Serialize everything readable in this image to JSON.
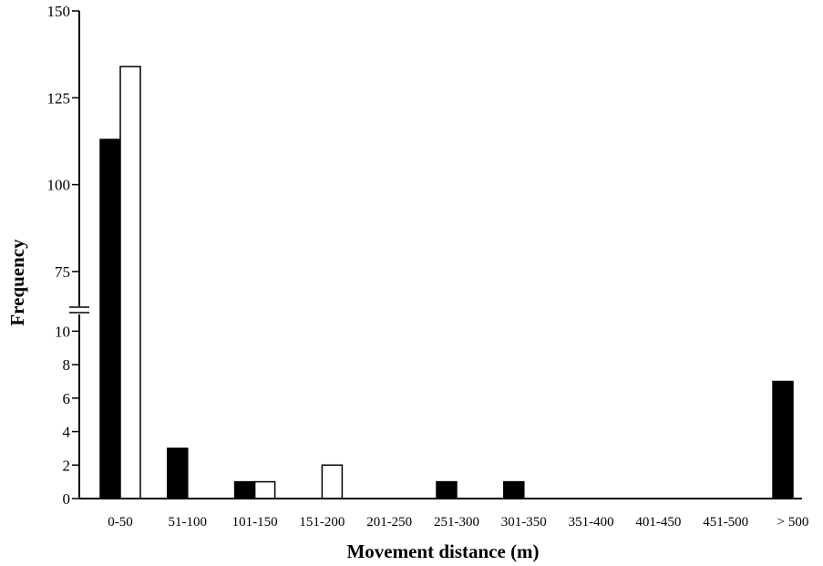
{
  "chart_data": {
    "type": "bar",
    "title": "",
    "xlabel": "Movement distance (m)",
    "ylabel": "Frequency",
    "categories": [
      "0-50",
      "51-100",
      "101-150",
      "151-200",
      "201-250",
      "251-300",
      "301-350",
      "351-400",
      "401-450",
      "451-500",
      "> 500"
    ],
    "series": [
      {
        "color": "#000000",
        "values": [
          113,
          3,
          1,
          0,
          0,
          1,
          1,
          0,
          0,
          0,
          7
        ]
      },
      {
        "color": "#ffffff",
        "values": [
          134,
          0,
          1,
          2,
          0,
          0,
          0,
          0,
          0,
          0,
          0
        ]
      }
    ],
    "y_axis_broken": true,
    "y_lower_ticks": [
      "0",
      "2",
      "4",
      "6",
      "8",
      "10"
    ],
    "y_upper_ticks": [
      "75",
      "100",
      "125",
      "150"
    ],
    "lower_range": [
      0,
      11
    ],
    "upper_range": [
      65,
      150
    ],
    "grid": false,
    "legend": "none"
  }
}
